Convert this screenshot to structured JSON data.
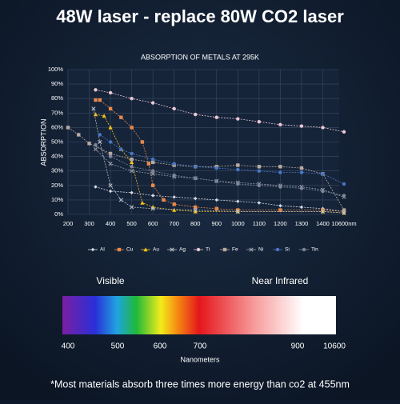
{
  "title": "48W laser - replace 80W CO2 laser",
  "chart_data": {
    "type": "line",
    "title": "ABSORPTION OF METALS AT 295K",
    "y_label": "ABSORPTION",
    "xticks": [
      200,
      300,
      400,
      500,
      600,
      700,
      800,
      900,
      1000,
      1100,
      1200,
      1300,
      1400,
      {
        "value": 10600,
        "label": "10600nm"
      }
    ],
    "xlim": [
      200,
      10600
    ],
    "ylim": [
      0,
      100
    ],
    "yticks": [
      {
        "value": 0,
        "label": "0%"
      },
      {
        "value": 10,
        "label": "10%"
      },
      {
        "value": 20,
        "label": "20%"
      },
      {
        "value": 30,
        "label": "30%"
      },
      {
        "value": 40,
        "label": "40%"
      },
      {
        "value": 50,
        "label": "50%"
      },
      {
        "value": 60,
        "label": "60%"
      },
      {
        "value": 70,
        "label": "70%"
      },
      {
        "value": 80,
        "label": "80%"
      },
      {
        "value": 90,
        "label": "90%"
      },
      {
        "value": 100,
        "label": "100%"
      }
    ],
    "grid": true,
    "series": [
      {
        "name": "Al",
        "color": "#d8dce6",
        "marker": "diamond",
        "x": [
          330,
          400,
          500,
          600,
          700,
          800,
          900,
          1000,
          1100,
          1200,
          1300,
          1400,
          10600
        ],
        "values": [
          19,
          16,
          15,
          13,
          12,
          11,
          10,
          9,
          8,
          6,
          5,
          4,
          2
        ]
      },
      {
        "name": "Cu",
        "color": "#e8894a",
        "marker": "square",
        "x": [
          330,
          350,
          400,
          450,
          500,
          550,
          580,
          600,
          650,
          700,
          800,
          900,
          1000,
          1200,
          1400,
          10600
        ],
        "values": [
          79,
          79,
          73,
          67,
          60,
          50,
          35,
          20,
          10,
          7,
          5,
          4,
          3,
          3,
          3,
          2
        ]
      },
      {
        "name": "Au",
        "color": "#f2c21b",
        "marker": "triangle",
        "x": [
          330,
          370,
          400,
          450,
          500,
          550,
          600,
          700,
          800,
          1000,
          1400,
          10600
        ],
        "values": [
          69,
          68,
          60,
          45,
          36,
          8,
          5,
          3,
          2,
          2,
          2,
          1
        ]
      },
      {
        "name": "Ag",
        "color": "#b9bec9",
        "marker": "cross",
        "x": [
          320,
          350,
          400,
          450,
          500,
          600,
          800,
          1000,
          1400,
          10600
        ],
        "values": [
          73,
          50,
          20,
          10,
          5,
          4,
          3,
          2,
          2,
          1
        ]
      },
      {
        "name": "Ti",
        "color": "#e9c9d6",
        "marker": "circle",
        "x": [
          330,
          400,
          500,
          600,
          700,
          800,
          900,
          1000,
          1100,
          1200,
          1300,
          1400,
          10600
        ],
        "values": [
          86,
          84,
          80,
          77,
          73,
          69,
          67,
          66,
          64,
          62,
          61,
          60,
          57
        ]
      },
      {
        "name": "Fe",
        "color": "#b8aaa0",
        "marker": "square",
        "x": [
          200,
          250,
          300,
          400,
          500,
          600,
          700,
          800,
          900,
          1000,
          1100,
          1200,
          1300,
          1400,
          10600
        ],
        "values": [
          60,
          55,
          49,
          42,
          38,
          36,
          34,
          33,
          33,
          34,
          33,
          33,
          32,
          28,
          3
        ]
      },
      {
        "name": "Ni",
        "color": "#9aa0ad",
        "marker": "cross",
        "x": [
          330,
          400,
          500,
          600,
          700,
          800,
          900,
          1000,
          1100,
          1200,
          1300,
          1400,
          10600
        ],
        "values": [
          45,
          35,
          30,
          28,
          26,
          25,
          23,
          22,
          21,
          20,
          19,
          17,
          12
        ]
      },
      {
        "name": "Si",
        "color": "#4a78c8",
        "marker": "circle",
        "x": [
          350,
          400,
          450,
          500,
          600,
          700,
          800,
          900,
          1000,
          1100,
          1200,
          1300,
          1400,
          10600
        ],
        "values": [
          55,
          50,
          45,
          42,
          38,
          35,
          33,
          32,
          31,
          30,
          29,
          29,
          28,
          21
        ]
      },
      {
        "name": "Tin",
        "color": "#7d8699",
        "marker": "circle",
        "x": [
          330,
          400,
          500,
          600,
          700,
          800,
          900,
          1000,
          1100,
          1200,
          1300,
          1400,
          10600
        ],
        "values": [
          48,
          40,
          33,
          30,
          27,
          25,
          23,
          21,
          20,
          19,
          18,
          16,
          13
        ]
      }
    ]
  },
  "spectrum": {
    "regions": [
      "Visible",
      "Near Infrared"
    ],
    "ticks": [
      400,
      500,
      600,
      700,
      900,
      10600
    ],
    "axis_label": "Nanometers"
  },
  "footnote": "*Most materials absorb three times more energy than co2 at 455nm"
}
